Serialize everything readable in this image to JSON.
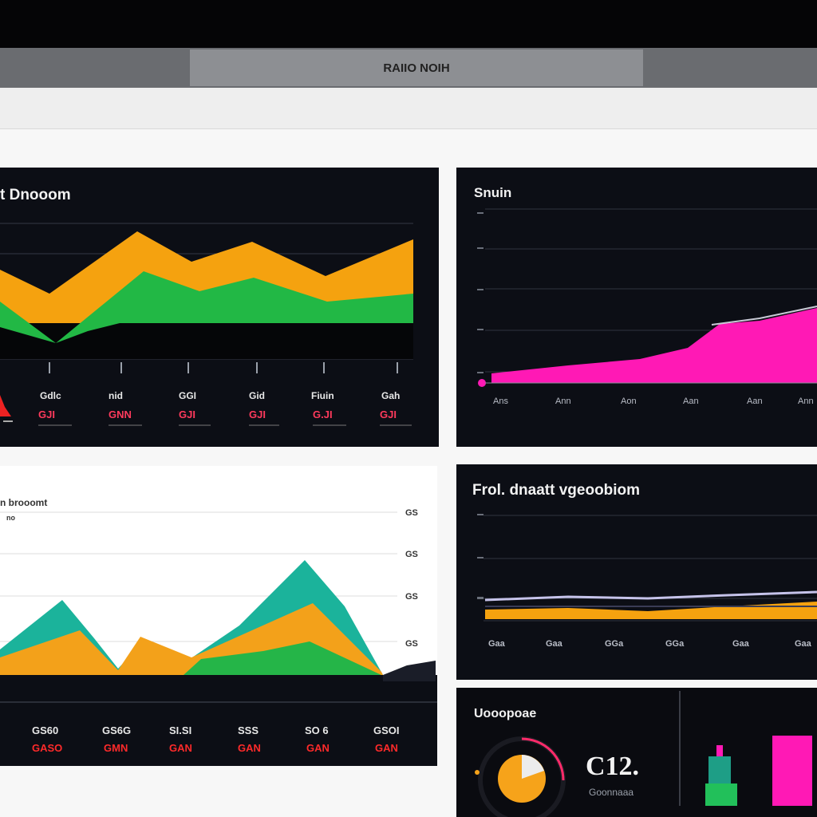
{
  "window": {
    "title": "RAIIO NOIH"
  },
  "panels": {
    "top_left": {
      "title": "t Dnooom",
      "labels_top": [
        "Gdlc",
        "nid",
        "GGI",
        "Gid",
        "Fiuin",
        "Gah"
      ],
      "labels_bottom": [
        "GJI",
        "GNN",
        "GJI",
        "GJI",
        "G.JI",
        "GJI"
      ],
      "colors": {
        "orange": "#f5a20f",
        "green": "#22b845"
      }
    },
    "top_right": {
      "title": "Snuin",
      "x_labels": [
        "Ans",
        "Ann",
        "Aon",
        "Aan",
        "Aan",
        "Ann"
      ],
      "colors": {
        "magenta": "#ff19b5"
      }
    },
    "bottom_left": {
      "title": "n brooomt",
      "subtitle": "no",
      "y_labels": [
        "GS",
        "GS",
        "GS",
        "GS"
      ],
      "labels_top": [
        "GS60",
        "GS6G",
        "SI.SI",
        "SSS",
        "SO 6",
        "GSOI"
      ],
      "labels_bottom": [
        "GASO",
        "GMN",
        "GAN",
        "GAN",
        "GAN",
        "GAN"
      ],
      "colors": {
        "teal": "#1bb39b",
        "orange": "#f3a11a",
        "green": "#25b548"
      }
    },
    "bottom_right": {
      "title": "Frol. dnaatt vgeoobiom",
      "x_labels": [
        "Gaa",
        "Gaa",
        "GGa",
        "GGa",
        "Gaa",
        "Gaa"
      ],
      "colors": {
        "orange": "#f5a20f",
        "lavender": "#c6c3ea"
      }
    },
    "kpi": {
      "title": "Uooopoae",
      "value": "C12.",
      "caption": "Goonnaaa",
      "colors": {
        "orange": "#f6a31a",
        "magenta": "#ff19b5",
        "green": "#22c05a",
        "teal": "#1e9e86"
      }
    }
  }
}
